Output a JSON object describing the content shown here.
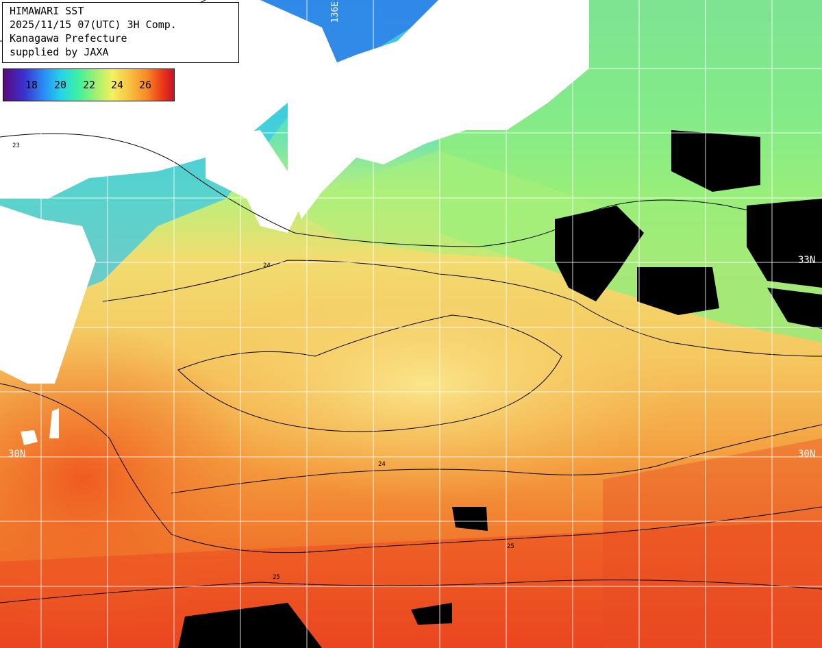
{
  "info": {
    "title": "HIMAWARI SST",
    "timestamp": "2025/11/15 07(UTC) 3H Comp.",
    "prefecture": "Kanagawa Prefecture",
    "credit": "supplied by JAXA"
  },
  "legend": {
    "ticks": [
      "18",
      "20",
      "22",
      "24",
      "26"
    ]
  },
  "graticule": {
    "lat_labels": [
      "33N",
      "30N",
      "30N"
    ],
    "lon_labels": [
      "136E"
    ]
  },
  "contour_labels": [
    "23",
    "24",
    "25"
  ],
  "colors": {
    "land": "#ffffff",
    "cloud": "#000000",
    "grid": "#ffffff",
    "contour": "#000000"
  }
}
